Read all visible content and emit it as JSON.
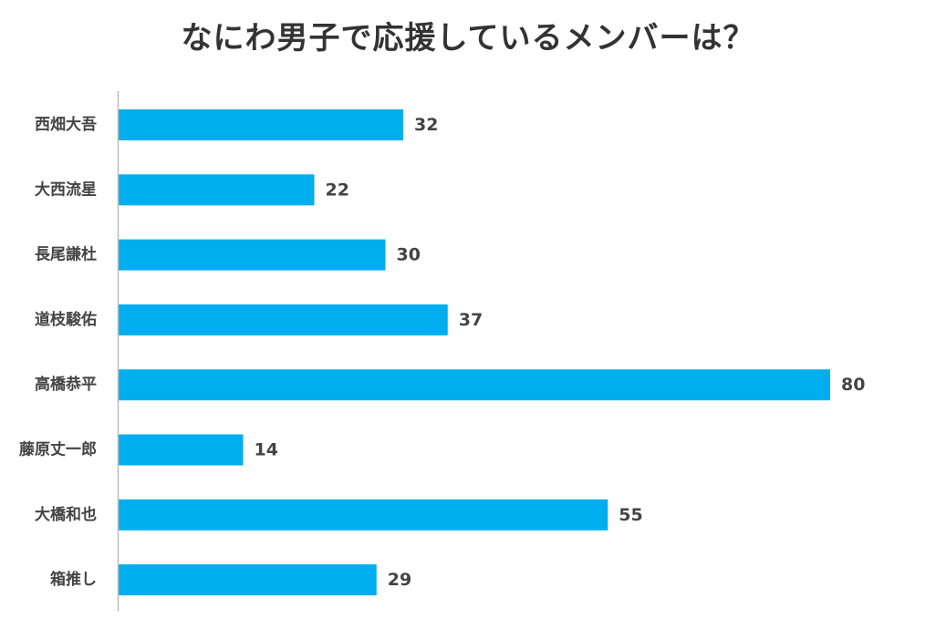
{
  "chart_data": {
    "type": "bar",
    "orientation": "horizontal",
    "title": "なにわ男子で応援しているメンバーは？",
    "categories": [
      "西畑大吾",
      "大西流星",
      "長尾謙杜",
      "道枝駿佑",
      "高橋恭平",
      "藤原丈一郎",
      "大橋和也",
      "箱推し"
    ],
    "values": [
      32,
      22,
      30,
      37,
      80,
      14,
      55,
      29
    ],
    "xlim": [
      0,
      80
    ],
    "xlabel": "",
    "ylabel": "",
    "grid": false,
    "legend": "none",
    "bar_color": "#00AEEF",
    "axis_color": "#BBBBBB"
  }
}
